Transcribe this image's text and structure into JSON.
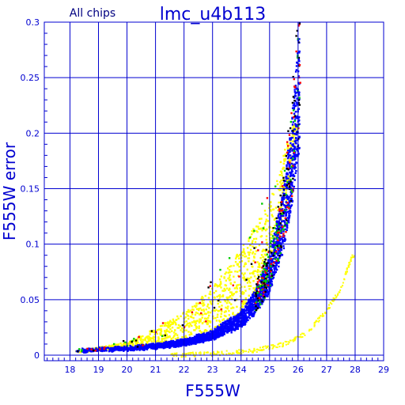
{
  "chart_data": {
    "type": "scatter",
    "panel_label": "All chips",
    "title": "lmc_u4b113",
    "xlabel": "F555W",
    "ylabel": "F555W error",
    "xlim": [
      17.1,
      29.0
    ],
    "ylim": [
      -0.005,
      0.3
    ],
    "x_ticks": [
      "18",
      "19",
      "20",
      "21",
      "22",
      "23",
      "24",
      "25",
      "26",
      "27",
      "28",
      "29"
    ],
    "y_ticks": [
      "0",
      "0.05",
      "0.1",
      "0.15",
      "0.2",
      "0.25",
      "0.3"
    ],
    "grid": true,
    "colors": {
      "frame": "#0000d0",
      "grid": "#0000d0",
      "ticklabels": "#0000d0",
      "title": "#0000d0",
      "panel_label": "#000080",
      "dense_series": "#0000ff",
      "yellow_series": "#ffff00",
      "other_points": [
        "#ff0000",
        "#00cc00",
        "#000000"
      ]
    },
    "series": [
      {
        "color": "#0000ff",
        "description_points": [
          {
            "x": 18.2,
            "y": 0.002
          },
          {
            "x": 19.0,
            "y": 0.003
          },
          {
            "x": 20.0,
            "y": 0.004
          },
          {
            "x": 21.0,
            "y": 0.006
          },
          {
            "x": 22.0,
            "y": 0.009
          },
          {
            "x": 23.0,
            "y": 0.015
          },
          {
            "x": 24.0,
            "y": 0.028
          },
          {
            "x": 24.5,
            "y": 0.042
          },
          {
            "x": 25.0,
            "y": 0.065
          },
          {
            "x": 25.5,
            "y": 0.11
          },
          {
            "x": 25.8,
            "y": 0.16
          },
          {
            "x": 26.0,
            "y": 0.21
          }
        ]
      },
      {
        "color": "#ffff00",
        "description_points": [
          {
            "x": 18.2,
            "y": 0.004
          },
          {
            "x": 19.0,
            "y": 0.006
          },
          {
            "x": 20.0,
            "y": 0.01
          },
          {
            "x": 21.0,
            "y": 0.02
          },
          {
            "x": 22.0,
            "y": 0.032
          },
          {
            "x": 23.0,
            "y": 0.05
          },
          {
            "x": 24.0,
            "y": 0.08
          },
          {
            "x": 25.0,
            "y": 0.12
          },
          {
            "x": 25.9,
            "y": 0.205
          }
        ]
      },
      {
        "color": "#ffff00",
        "description_points": [
          {
            "x": 21.5,
            "y": 0.0
          },
          {
            "x": 23.0,
            "y": 0.001
          },
          {
            "x": 24.5,
            "y": 0.004
          },
          {
            "x": 25.5,
            "y": 0.01
          },
          {
            "x": 26.3,
            "y": 0.02
          },
          {
            "x": 27.0,
            "y": 0.04
          },
          {
            "x": 27.5,
            "y": 0.06
          },
          {
            "x": 27.9,
            "y": 0.09
          }
        ]
      }
    ]
  }
}
